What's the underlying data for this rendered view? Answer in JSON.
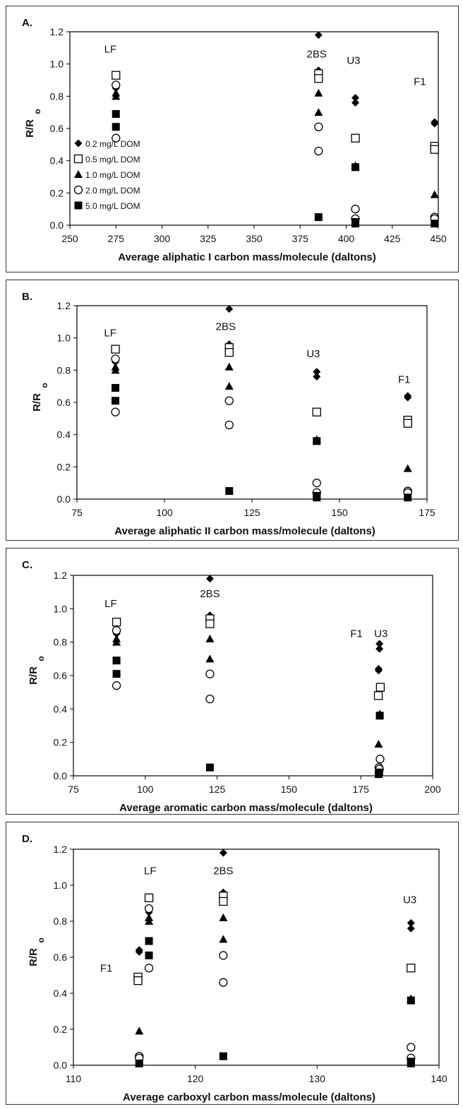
{
  "chart_data": [
    {
      "panel_label": "A.",
      "type": "scatter",
      "xlabel": "Average aliphatic I carbon mass/molecule (daltons)",
      "ylabel": "R/R",
      "ylabel_sub": "o",
      "xlim": [
        250,
        450
      ],
      "ylim": [
        0,
        1.2
      ],
      "xticks": [
        250,
        275,
        300,
        325,
        350,
        375,
        400,
        425,
        450
      ],
      "yticks": [
        0.0,
        0.2,
        0.4,
        0.6,
        0.8,
        1.0,
        1.2
      ],
      "legend": true,
      "series": [
        {
          "name": "0.2 mg/L DOM",
          "marker": "diamond",
          "points": [
            [
              275,
              0.85
            ],
            [
              385,
              1.18
            ],
            [
              385,
              0.96
            ],
            [
              405,
              0.79
            ],
            [
              405,
              0.76
            ],
            [
              448,
              0.64
            ],
            [
              448,
              0.63
            ]
          ]
        },
        {
          "name": "0.5 mg/L DOM",
          "marker": "square-open",
          "points": [
            [
              275,
              0.93
            ],
            [
              385,
              0.94
            ],
            [
              385,
              0.91
            ],
            [
              405,
              0.54
            ],
            [
              448,
              0.49
            ],
            [
              448,
              0.47
            ]
          ]
        },
        {
          "name": "1.0 mg/L DOM",
          "marker": "triangle",
          "points": [
            [
              275,
              0.82
            ],
            [
              275,
              0.8
            ],
            [
              385,
              0.82
            ],
            [
              385,
              0.7
            ],
            [
              405,
              0.37
            ],
            [
              448,
              0.19
            ]
          ]
        },
        {
          "name": "2.0 mg/L DOM",
          "marker": "circle-open",
          "points": [
            [
              275,
              0.87
            ],
            [
              275,
              0.54
            ],
            [
              385,
              0.61
            ],
            [
              385,
              0.46
            ],
            [
              405,
              0.1
            ],
            [
              405,
              0.04
            ],
            [
              448,
              0.05
            ],
            [
              448,
              0.04
            ]
          ]
        },
        {
          "name": "5.0 mg/L DOM",
          "marker": "square",
          "points": [
            [
              275,
              0.69
            ],
            [
              275,
              0.61
            ],
            [
              385,
              0.05
            ],
            [
              405,
              0.36
            ],
            [
              405,
              0.02
            ],
            [
              405,
              0.01
            ],
            [
              448,
              0.01
            ]
          ]
        }
      ],
      "annotations": [
        {
          "text": "LF",
          "x": 272,
          "y": 1.07
        },
        {
          "text": "2BS",
          "x": 384,
          "y": 1.04
        },
        {
          "text": "U3",
          "x": 404,
          "y": 1.0
        },
        {
          "text": "F1",
          "x": 440,
          "y": 0.87
        }
      ]
    },
    {
      "panel_label": "B.",
      "type": "scatter",
      "xlabel": "Average aliphatic II carbon mass/molecule (daltons)",
      "ylabel": "R/R",
      "ylabel_sub": "o",
      "xlim": [
        75,
        175
      ],
      "ylim": [
        0,
        1.2
      ],
      "xticks": [
        75,
        100,
        125,
        150,
        175
      ],
      "yticks": [
        0.0,
        0.2,
        0.4,
        0.6,
        0.8,
        1.0,
        1.2
      ],
      "legend": false,
      "series": [
        {
          "name": "0.2 mg/L DOM",
          "marker": "diamond",
          "points": [
            [
              86,
              0.85
            ],
            [
              118.5,
              1.18
            ],
            [
              118.5,
              0.96
            ],
            [
              143.5,
              0.79
            ],
            [
              143.5,
              0.76
            ],
            [
              169.5,
              0.64
            ],
            [
              169.5,
              0.63
            ]
          ]
        },
        {
          "name": "0.5 mg/L DOM",
          "marker": "square-open",
          "points": [
            [
              86,
              0.93
            ],
            [
              118.5,
              0.94
            ],
            [
              118.5,
              0.91
            ],
            [
              143.5,
              0.54
            ],
            [
              169.5,
              0.49
            ],
            [
              169.5,
              0.47
            ]
          ]
        },
        {
          "name": "1.0 mg/L DOM",
          "marker": "triangle",
          "points": [
            [
              86,
              0.82
            ],
            [
              86,
              0.8
            ],
            [
              118.5,
              0.82
            ],
            [
              118.5,
              0.7
            ],
            [
              143.5,
              0.37
            ],
            [
              169.5,
              0.19
            ]
          ]
        },
        {
          "name": "2.0 mg/L DOM",
          "marker": "circle-open",
          "points": [
            [
              86,
              0.87
            ],
            [
              86,
              0.54
            ],
            [
              118.5,
              0.61
            ],
            [
              118.5,
              0.46
            ],
            [
              143.5,
              0.1
            ],
            [
              143.5,
              0.04
            ],
            [
              169.5,
              0.05
            ],
            [
              169.5,
              0.04
            ]
          ]
        },
        {
          "name": "5.0 mg/L DOM",
          "marker": "square",
          "points": [
            [
              86,
              0.69
            ],
            [
              86,
              0.61
            ],
            [
              118.5,
              0.05
            ],
            [
              143.5,
              0.36
            ],
            [
              143.5,
              0.02
            ],
            [
              143.5,
              0.01
            ],
            [
              169.5,
              0.01
            ]
          ]
        }
      ],
      "annotations": [
        {
          "text": "LF",
          "x": 84.5,
          "y": 1.01
        },
        {
          "text": "2BS",
          "x": 117.5,
          "y": 1.05
        },
        {
          "text": "U3",
          "x": 142.5,
          "y": 0.88
        },
        {
          "text": "F1",
          "x": 168.5,
          "y": 0.72
        }
      ]
    },
    {
      "panel_label": "C.",
      "type": "scatter",
      "xlabel": "Average aromatic carbon mass/molecule (daltons)",
      "ylabel": "R/R",
      "ylabel_sub": "o",
      "xlim": [
        75,
        200
      ],
      "ylim": [
        0,
        1.2
      ],
      "xticks": [
        75,
        100,
        125,
        150,
        175,
        200
      ],
      "yticks": [
        0.0,
        0.2,
        0.4,
        0.6,
        0.8,
        1.0,
        1.2
      ],
      "legend": false,
      "series": [
        {
          "name": "0.2 mg/L DOM",
          "marker": "diamond",
          "points": [
            [
              90,
              0.85
            ],
            [
              122.5,
              1.18
            ],
            [
              122.5,
              0.96
            ],
            [
              181.5,
              0.79
            ],
            [
              181.5,
              0.76
            ],
            [
              181.2,
              0.64
            ],
            [
              181.2,
              0.63
            ]
          ]
        },
        {
          "name": "0.5 mg/L DOM",
          "marker": "square-open",
          "points": [
            [
              90,
              0.92
            ],
            [
              122.5,
              0.94
            ],
            [
              122.5,
              0.91
            ],
            [
              181.8,
              0.53
            ],
            [
              181.1,
              0.48
            ]
          ]
        },
        {
          "name": "1.0 mg/L DOM",
          "marker": "triangle",
          "points": [
            [
              90,
              0.82
            ],
            [
              90,
              0.8
            ],
            [
              122.5,
              0.82
            ],
            [
              122.5,
              0.7
            ],
            [
              181.6,
              0.37
            ],
            [
              181.2,
              0.19
            ]
          ]
        },
        {
          "name": "2.0 mg/L DOM",
          "marker": "circle-open",
          "points": [
            [
              90,
              0.87
            ],
            [
              90,
              0.54
            ],
            [
              122.5,
              0.61
            ],
            [
              122.5,
              0.46
            ],
            [
              181.7,
              0.1
            ],
            [
              181.3,
              0.05
            ],
            [
              181.5,
              0.04
            ]
          ]
        },
        {
          "name": "5.0 mg/L DOM",
          "marker": "square",
          "points": [
            [
              90,
              0.69
            ],
            [
              90,
              0.61
            ],
            [
              122.5,
              0.05
            ],
            [
              181.6,
              0.36
            ],
            [
              181.4,
              0.02
            ],
            [
              181.2,
              0.01
            ]
          ]
        }
      ],
      "annotations": [
        {
          "text": "LF",
          "x": 88,
          "y": 1.01
        },
        {
          "text": "2BS",
          "x": 122.5,
          "y": 1.07
        },
        {
          "text": "F1",
          "x": 173.5,
          "y": 0.83
        },
        {
          "text": "U3",
          "x": 182,
          "y": 0.83
        }
      ]
    },
    {
      "panel_label": "D.",
      "type": "scatter",
      "xlabel": "Average carboxyl carbon mass/molecule (daltons)",
      "ylabel": "R/R",
      "ylabel_sub": "o",
      "xlim": [
        110,
        140
      ],
      "ylim": [
        0,
        1.2
      ],
      "xticks": [
        110,
        120,
        130,
        140
      ],
      "yticks": [
        0.0,
        0.2,
        0.4,
        0.6,
        0.8,
        1.0,
        1.2
      ],
      "legend": false,
      "series": [
        {
          "name": "0.2 mg/L DOM",
          "marker": "diamond",
          "points": [
            [
              116.2,
              0.85
            ],
            [
              115.4,
              0.64
            ],
            [
              115.4,
              0.63
            ],
            [
              122.3,
              1.18
            ],
            [
              122.3,
              0.96
            ],
            [
              137.7,
              0.79
            ],
            [
              137.7,
              0.76
            ]
          ]
        },
        {
          "name": "0.5 mg/L DOM",
          "marker": "square-open",
          "points": [
            [
              116.2,
              0.93
            ],
            [
              115.3,
              0.49
            ],
            [
              115.3,
              0.47
            ],
            [
              122.3,
              0.94
            ],
            [
              122.3,
              0.91
            ],
            [
              137.7,
              0.54
            ]
          ]
        },
        {
          "name": "1.0 mg/L DOM",
          "marker": "triangle",
          "points": [
            [
              116.2,
              0.82
            ],
            [
              116.2,
              0.8
            ],
            [
              115.4,
              0.19
            ],
            [
              122.3,
              0.82
            ],
            [
              122.3,
              0.7
            ],
            [
              137.7,
              0.37
            ]
          ]
        },
        {
          "name": "2.0 mg/L DOM",
          "marker": "circle-open",
          "points": [
            [
              116.2,
              0.87
            ],
            [
              116.2,
              0.54
            ],
            [
              115.4,
              0.05
            ],
            [
              115.4,
              0.04
            ],
            [
              122.3,
              0.61
            ],
            [
              122.3,
              0.46
            ],
            [
              137.7,
              0.1
            ],
            [
              137.7,
              0.04
            ]
          ]
        },
        {
          "name": "5.0 mg/L DOM",
          "marker": "square",
          "points": [
            [
              116.2,
              0.69
            ],
            [
              116.2,
              0.61
            ],
            [
              115.4,
              0.01
            ],
            [
              122.3,
              0.05
            ],
            [
              137.7,
              0.36
            ],
            [
              137.7,
              0.02
            ],
            [
              137.7,
              0.01
            ]
          ]
        }
      ],
      "annotations": [
        {
          "text": "LF",
          "x": 116.3,
          "y": 1.06
        },
        {
          "text": "2BS",
          "x": 122.3,
          "y": 1.06
        },
        {
          "text": "U3",
          "x": 137.6,
          "y": 0.9
        },
        {
          "text": "F1",
          "x": 112.7,
          "y": 0.52
        }
      ]
    }
  ]
}
